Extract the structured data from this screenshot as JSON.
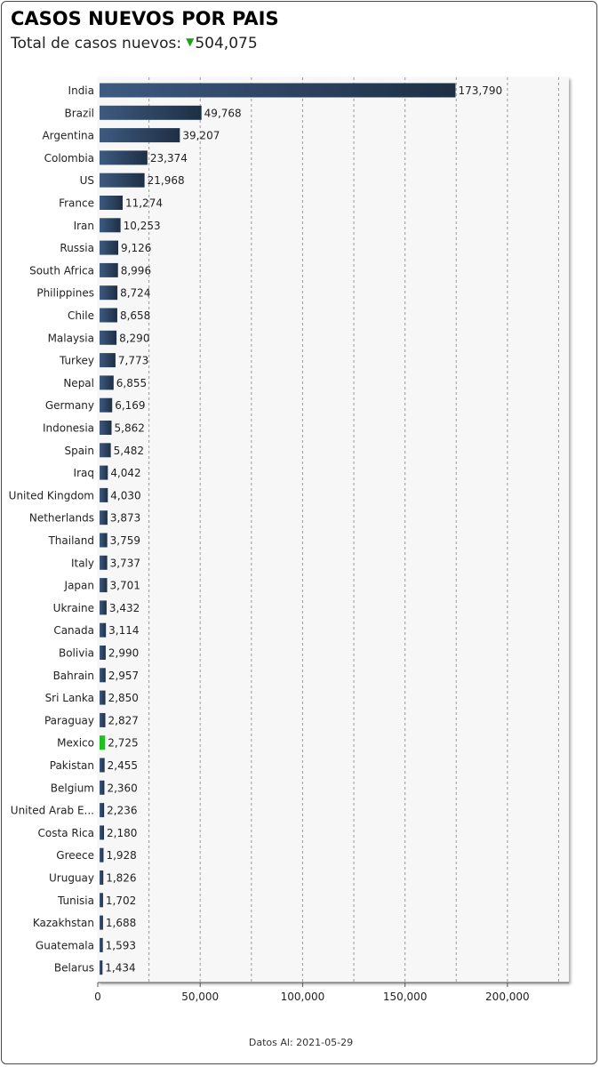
{
  "header": {
    "title": "CASOS NUEVOS POR PAIS",
    "subtitle_label": "Total de casos nuevos:",
    "total_value": "504,075",
    "trend_icon": "triangle-down-icon"
  },
  "footer": {
    "label": "Datos Al:",
    "date": "2021-05-29"
  },
  "colors": {
    "bar": "#2c4564",
    "highlight": "#1fc01f",
    "plot_bg": "#f7f7f7",
    "trend": "#1aa31a"
  },
  "chart_data": {
    "type": "bar",
    "orientation": "horizontal",
    "title": "CASOS NUEVOS POR PAIS",
    "xlabel": "",
    "ylabel": "",
    "xlim": [
      0,
      230000
    ],
    "xticks": [
      0,
      50000,
      100000,
      150000,
      200000
    ],
    "xtick_labels": [
      "0",
      "50,000",
      "100,000",
      "150,000",
      "200,000"
    ],
    "grid": true,
    "highlight_category": "Mexico",
    "categories": [
      "India",
      "Brazil",
      "Argentina",
      "Colombia",
      "US",
      "France",
      "Iran",
      "Russia",
      "South Africa",
      "Philippines",
      "Chile",
      "Malaysia",
      "Turkey",
      "Nepal",
      "Germany",
      "Indonesia",
      "Spain",
      "Iraq",
      "United Kingdom",
      "Netherlands",
      "Thailand",
      "Italy",
      "Japan",
      "Ukraine",
      "Canada",
      "Bolivia",
      "Bahrain",
      "Sri Lanka",
      "Paraguay",
      "Mexico",
      "Pakistan",
      "Belgium",
      "United Arab E...",
      "Costa Rica",
      "Greece",
      "Uruguay",
      "Tunisia",
      "Kazakhstan",
      "Guatemala",
      "Belarus"
    ],
    "values": [
      173790,
      49768,
      39207,
      23374,
      21968,
      11274,
      10253,
      9126,
      8996,
      8724,
      8658,
      8290,
      7773,
      6855,
      6169,
      5862,
      5482,
      4042,
      4030,
      3873,
      3759,
      3737,
      3701,
      3432,
      3114,
      2990,
      2957,
      2850,
      2827,
      2725,
      2455,
      2360,
      2236,
      2180,
      1928,
      1826,
      1702,
      1688,
      1593,
      1434
    ],
    "value_labels": [
      "173,790",
      "49,768",
      "39,207",
      "23,374",
      "21,968",
      "11,274",
      "10,253",
      "9,126",
      "8,996",
      "8,724",
      "8,658",
      "8,290",
      "7,773",
      "6,855",
      "6,169",
      "5,862",
      "5,482",
      "4,042",
      "4,030",
      "3,873",
      "3,759",
      "3,737",
      "3,701",
      "3,432",
      "3,114",
      "2,990",
      "2,957",
      "2,850",
      "2,827",
      "2,725",
      "2,455",
      "2,360",
      "2,236",
      "2,180",
      "1,928",
      "1,826",
      "1,702",
      "1,688",
      "1,593",
      "1,434"
    ]
  }
}
